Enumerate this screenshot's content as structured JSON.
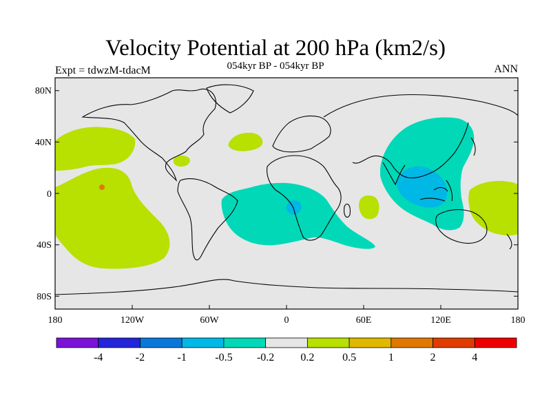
{
  "title": "Velocity Potential at 200 hPa (km2/s)",
  "subtitle": "054kyr BP - 054kyr BP",
  "left_label": "Expt = tdwzM-tdacM",
  "right_label": "ANN",
  "map": {
    "projection": "cylindrical equidistant",
    "lon_range": [
      -180,
      180
    ],
    "lat_range": [
      -90,
      90
    ],
    "background_color": "#e6e6e6",
    "coastline_color": "#000000",
    "lat_ticks": [
      "80N",
      "40N",
      "0",
      "40S",
      "80S"
    ],
    "lon_ticks": [
      "180",
      "120W",
      "60W",
      "0",
      "60E",
      "120E",
      "180"
    ]
  },
  "colorbar": {
    "colors": [
      "#7a12d8",
      "#2424d8",
      "#0a78d8",
      "#00b8e6",
      "#00d8b8",
      "#e6e6e6",
      "#b8e000",
      "#e0b800",
      "#e07800",
      "#e03c00",
      "#ee0000"
    ],
    "labels": [
      "-4",
      "-2",
      "-1",
      "-0.5",
      "-0.2",
      "0.2",
      "0.5",
      "1",
      "2",
      "4"
    ]
  },
  "fields": {
    "positive_color": "#b8e000",
    "negative_color": "#00d8b8",
    "strong_negative_color": "#00b8e6",
    "positive_regions": [
      "North Pacific",
      "South-East Pacific",
      "Caribbean",
      "North Atlantic",
      "Western Indian Ocean",
      "Western Pacific"
    ],
    "negative_regions": [
      "South Atlantic / Africa",
      "Asia / Indian Ocean",
      "Maritime Continent"
    ]
  }
}
